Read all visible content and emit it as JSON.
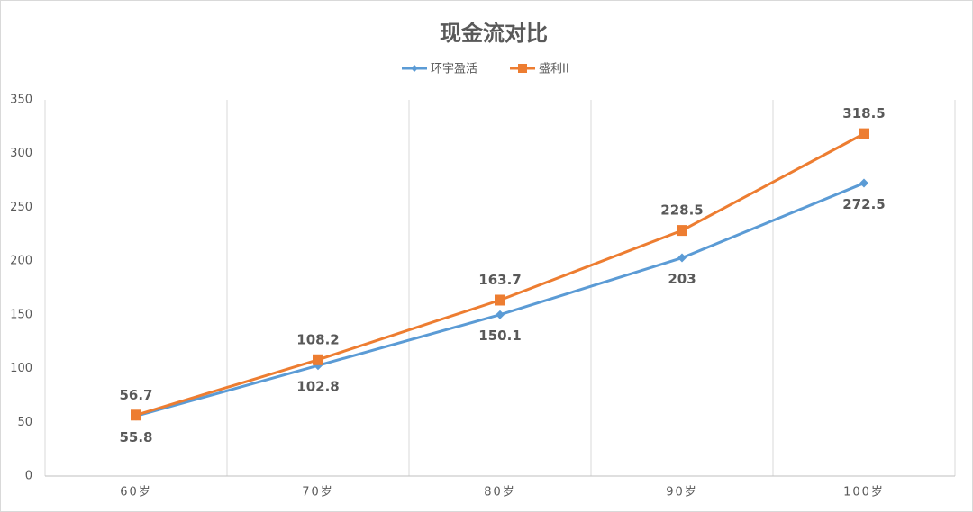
{
  "chart_data": {
    "type": "line",
    "title": "现金流对比",
    "categories": [
      "60岁",
      "70岁",
      "80岁",
      "90岁",
      "100岁"
    ],
    "series": [
      {
        "name": "环宇盈活",
        "color": "#5b9bd5",
        "marker": "diamond",
        "values": [
          55.8,
          102.8,
          150.1,
          203,
          272.5
        ]
      },
      {
        "name": "盛利II",
        "color": "#ed7d31",
        "marker": "square",
        "values": [
          56.7,
          108.2,
          163.7,
          228.5,
          318.5
        ]
      }
    ],
    "ylim": [
      0,
      350
    ],
    "yticks": [
      0,
      50,
      100,
      150,
      200,
      250,
      300,
      350
    ],
    "legend": "top"
  }
}
